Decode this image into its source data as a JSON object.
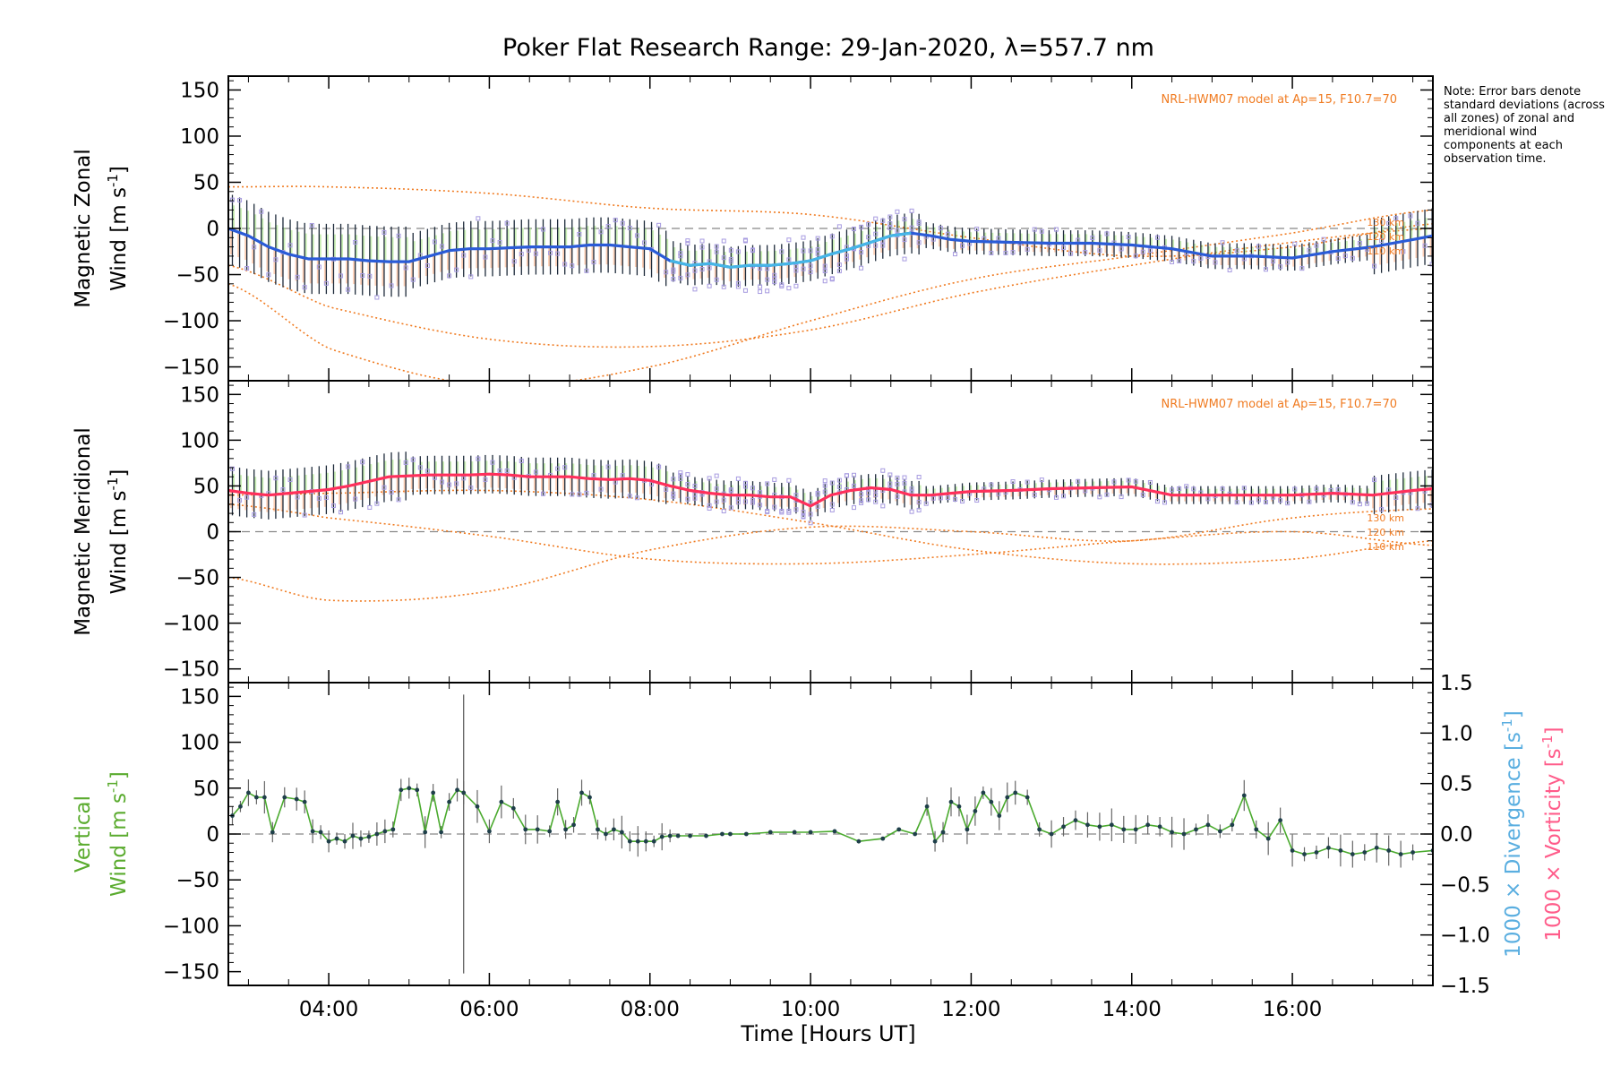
{
  "chart_data": {
    "type": "line",
    "title": "Poker Flat Research Range: 29-Jan-2020, λ=557.7 nm",
    "xlabel": "Time [Hours UT]",
    "xlim": [
      2.75,
      17.75
    ],
    "x_ticks": [
      4,
      6,
      8,
      10,
      12,
      14,
      16
    ],
    "x_tick_labels": [
      "04:00",
      "06:00",
      "08:00",
      "10:00",
      "12:00",
      "14:00",
      "16:00"
    ],
    "note": "Note: Error bars denote standard deviations (across all zones) of zonal and meridional wind components at each observation time.",
    "panels": [
      {
        "id": "zonal",
        "ylabel_line1": "Magnetic Zonal",
        "ylabel_line2": "Wind [m s",
        "ylabel_sup": "-1",
        "ylabel_end": "]",
        "ylim": [
          -165,
          165
        ],
        "y_ticks": [
          -150,
          -100,
          -50,
          0,
          50,
          100,
          150
        ],
        "model_label": "NRL-HWM07 model at Ap=15, F10.7=70",
        "altitude_labels": [
          "130 km",
          "120 km",
          "110 km"
        ],
        "mean_color": "#2a5bd7",
        "mean": {
          "x": [
            2.75,
            3.0,
            3.25,
            3.5,
            3.75,
            4.0,
            4.25,
            4.5,
            4.75,
            5.0,
            5.25,
            5.5,
            5.75,
            6.0,
            6.25,
            6.5,
            6.75,
            7.0,
            7.25,
            7.5,
            7.75,
            8.0,
            8.25,
            8.5,
            8.75,
            9.0,
            9.25,
            9.5,
            9.75,
            10.0,
            10.25,
            10.5,
            10.75,
            11.0,
            11.25,
            11.5,
            11.75,
            12.0,
            12.5,
            13.0,
            13.5,
            14.0,
            14.5,
            15.0,
            15.5,
            16.0,
            16.5,
            17.0,
            17.5,
            17.75
          ],
          "y": [
            0,
            -8,
            -20,
            -28,
            -33,
            -33,
            -33,
            -35,
            -36,
            -36,
            -30,
            -24,
            -22,
            -22,
            -21,
            -20,
            -20,
            -20,
            -18,
            -18,
            -20,
            -22,
            -35,
            -40,
            -38,
            -42,
            -40,
            -40,
            -38,
            -35,
            -28,
            -22,
            -15,
            -8,
            -5,
            -8,
            -12,
            -14,
            -15,
            -16,
            -16,
            -18,
            -22,
            -30,
            -30,
            -32,
            -25,
            -20,
            -12,
            -8
          ]
        },
        "model_curves": [
          {
            "name": "130 km",
            "x": [
              2.75,
              4.0,
              6.0,
              8.0,
              10.0,
              12.0,
              14.0,
              16.0,
              17.75
            ],
            "y": [
              45,
              45,
              38,
              22,
              15,
              -10,
              -30,
              -20,
              5
            ]
          },
          {
            "name": "120 km",
            "x": [
              2.75,
              4.0,
              6.0,
              8.0,
              10.0,
              12.0,
              14.0,
              16.0,
              17.75
            ],
            "y": [
              -40,
              -85,
              -120,
              -128,
              -110,
              -70,
              -40,
              -15,
              0
            ]
          },
          {
            "name": "110 km",
            "x": [
              2.75,
              4.0,
              6.0,
              8.0,
              10.0,
              12.0,
              14.0,
              16.0,
              17.75
            ],
            "y": [
              -60,
              -130,
              -170,
              -150,
              -100,
              -55,
              -30,
              -5,
              20
            ]
          }
        ]
      },
      {
        "id": "meridional",
        "ylabel_line1": "Magnetic Meridional",
        "ylabel_line2": "Wind [m s",
        "ylabel_sup": "-1",
        "ylabel_end": "]",
        "ylim": [
          -165,
          165
        ],
        "y_ticks": [
          -150,
          -100,
          -50,
          0,
          50,
          100,
          150
        ],
        "model_label": "NRL-HWM07 model at Ap=15, F10.7=70",
        "altitude_labels": [
          "130 km",
          "120 km",
          "110 km"
        ],
        "mean_color": "#ff2f5b",
        "mean": {
          "x": [
            2.75,
            3.0,
            3.25,
            3.5,
            3.75,
            4.0,
            4.25,
            4.5,
            4.75,
            5.0,
            5.25,
            5.5,
            5.75,
            6.0,
            6.25,
            6.5,
            6.75,
            7.0,
            7.25,
            7.5,
            7.75,
            8.0,
            8.25,
            8.5,
            8.75,
            9.0,
            9.25,
            9.5,
            9.75,
            10.0,
            10.25,
            10.5,
            10.75,
            11.0,
            11.25,
            11.5,
            11.75,
            12.0,
            12.5,
            13.0,
            13.5,
            14.0,
            14.5,
            15.0,
            15.5,
            16.0,
            16.5,
            17.0,
            17.5,
            17.75
          ],
          "y": [
            45,
            42,
            40,
            42,
            44,
            46,
            50,
            55,
            60,
            61,
            62,
            62,
            62,
            63,
            62,
            60,
            60,
            60,
            58,
            57,
            58,
            56,
            50,
            45,
            42,
            40,
            40,
            38,
            38,
            28,
            40,
            45,
            48,
            46,
            40,
            40,
            42,
            44,
            45,
            47,
            48,
            49,
            40,
            40,
            40,
            40,
            42,
            40,
            45,
            47
          ]
        },
        "model_curves": [
          {
            "name": "130 km",
            "x": [
              2.75,
              4.0,
              6.0,
              8.0,
              10.0,
              12.0,
              14.0,
              16.0,
              17.75
            ],
            "y": [
              40,
              42,
              45,
              35,
              10,
              -20,
              -35,
              -30,
              -10
            ]
          },
          {
            "name": "120 km",
            "x": [
              2.75,
              4.0,
              6.0,
              8.0,
              10.0,
              12.0,
              14.0,
              16.0,
              17.75
            ],
            "y": [
              -50,
              -75,
              -65,
              -20,
              5,
              0,
              -10,
              15,
              25
            ]
          },
          {
            "name": "110 km",
            "x": [
              2.75,
              4.0,
              6.0,
              8.0,
              10.0,
              12.0,
              14.0,
              16.0,
              17.75
            ],
            "y": [
              30,
              15,
              -5,
              -30,
              -35,
              -25,
              -10,
              0,
              -15
            ]
          }
        ]
      },
      {
        "id": "vertical",
        "ylabel_line1": "Vertical",
        "ylabel_line2": "Wind [m s",
        "ylabel_sup": "-1",
        "ylabel_end": "]",
        "ylim": [
          -165,
          165
        ],
        "y_ticks": [
          -150,
          -100,
          -50,
          0,
          50,
          100,
          150
        ],
        "right_axis": {
          "ylim": [
            -1.5,
            1.5
          ],
          "ticks": [
            -1.5,
            -1.0,
            -0.5,
            0.0,
            0.5,
            1.0,
            1.5
          ],
          "tick_labels": [
            "−1.5",
            "−1.0",
            "−0.5",
            "0.0",
            "0.5",
            "1.0",
            "1.5"
          ],
          "label_div_prefix": "1000 × Divergence [s",
          "label_vor_prefix": "1000 × Vorticity [s",
          "label_sup": "-1",
          "label_end": "]",
          "div_color": "#5aaee0",
          "vor_color": "#ff5c8a"
        },
        "line_color": "#4aaa2e",
        "series": {
          "x": [
            2.8,
            2.9,
            3.0,
            3.1,
            3.2,
            3.3,
            3.45,
            3.6,
            3.7,
            3.8,
            3.9,
            4.0,
            4.1,
            4.2,
            4.3,
            4.4,
            4.5,
            4.6,
            4.7,
            4.8,
            4.9,
            5.0,
            5.1,
            5.2,
            5.3,
            5.4,
            5.5,
            5.6,
            5.68,
            5.85,
            6.0,
            6.15,
            6.3,
            6.45,
            6.6,
            6.75,
            6.85,
            6.95,
            7.05,
            7.15,
            7.25,
            7.35,
            7.45,
            7.55,
            7.65,
            7.75,
            7.85,
            7.95,
            8.05,
            8.15,
            8.25,
            8.35,
            8.5,
            8.7,
            8.9,
            9.0,
            9.2,
            9.5,
            9.8,
            10.0,
            10.3,
            10.6,
            10.9,
            11.1,
            11.3,
            11.45,
            11.55,
            11.65,
            11.75,
            11.85,
            11.95,
            12.05,
            12.15,
            12.25,
            12.35,
            12.45,
            12.55,
            12.7,
            12.85,
            13.0,
            13.15,
            13.3,
            13.45,
            13.6,
            13.75,
            13.9,
            14.05,
            14.2,
            14.35,
            14.5,
            14.65,
            14.8,
            14.95,
            15.1,
            15.25,
            15.4,
            15.55,
            15.7,
            15.85,
            16.0,
            16.15,
            16.3,
            16.45,
            16.6,
            16.75,
            16.9,
            17.05,
            17.2,
            17.35,
            17.5,
            17.75
          ],
          "y": [
            20,
            30,
            45,
            40,
            40,
            2,
            40,
            38,
            35,
            3,
            2,
            -8,
            -5,
            -8,
            -2,
            -5,
            -3,
            0,
            3,
            5,
            48,
            50,
            48,
            2,
            45,
            2,
            35,
            48,
            45,
            30,
            3,
            35,
            28,
            5,
            5,
            3,
            35,
            5,
            10,
            45,
            40,
            5,
            0,
            5,
            2,
            -8,
            -8,
            -8,
            -8,
            -3,
            -2,
            -2,
            -2,
            -2,
            0,
            0,
            0,
            2,
            2,
            2,
            3,
            -8,
            -5,
            5,
            0,
            30,
            -8,
            2,
            35,
            30,
            5,
            25,
            45,
            35,
            20,
            40,
            45,
            40,
            5,
            0,
            8,
            15,
            10,
            8,
            10,
            5,
            5,
            10,
            8,
            2,
            0,
            5,
            10,
            3,
            10,
            42,
            5,
            -5,
            15,
            -18,
            -22,
            -20,
            -15,
            -18,
            -22,
            -20,
            -15,
            -18,
            -22,
            -20,
            -18
          ],
          "big_error_x": 5.68,
          "big_error_range": [
            -152,
            152
          ]
        }
      }
    ]
  }
}
